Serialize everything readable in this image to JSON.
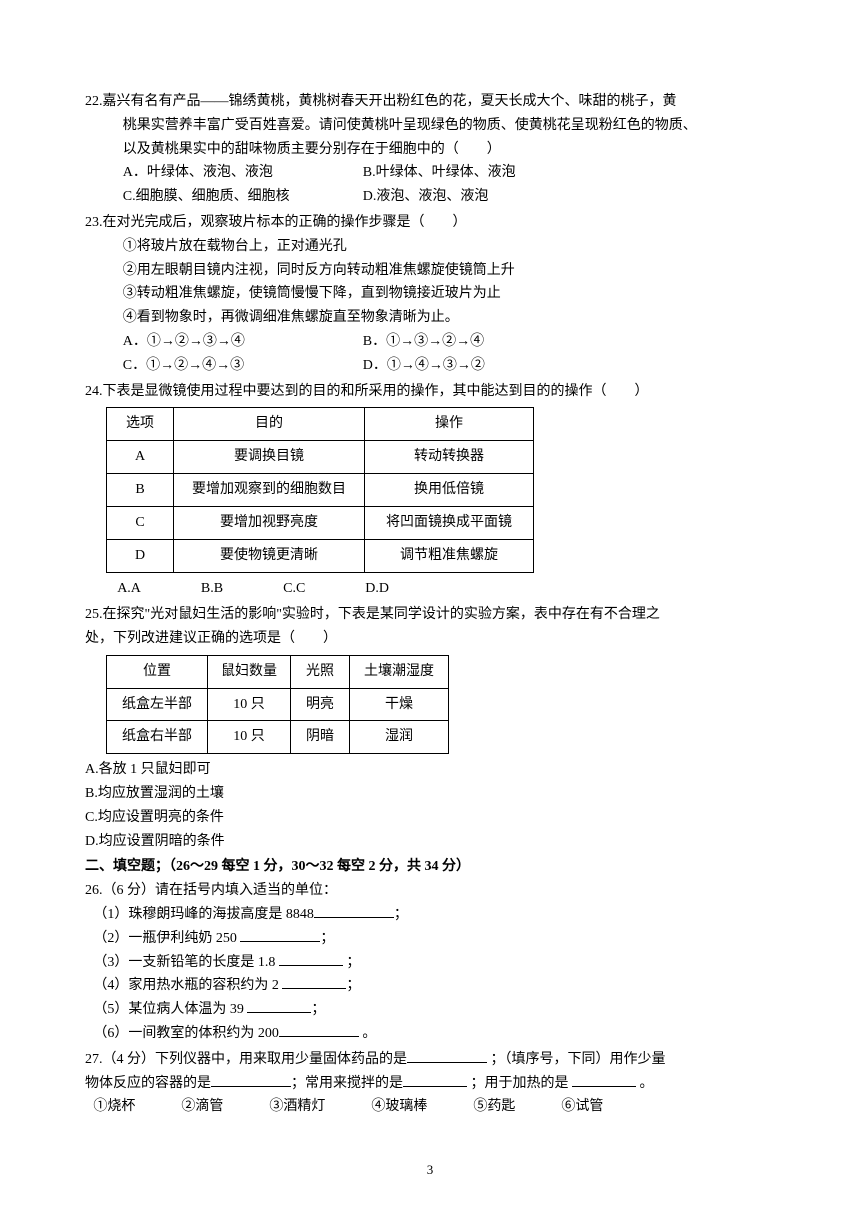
{
  "q22": {
    "number": "22.",
    "line1": "嘉兴有名有产品——锦绣黄桃，黄桃树春天开出粉红色的花，夏天长成大个、味甜的桃子，黄",
    "line2": "桃果实营养丰富广受百姓喜爱。请问使黄桃叶呈现绿色的物质、使黄桃花呈现粉红色的物质、",
    "line3": "以及黄桃果实中的甜味物质主要分别存在于细胞中的（　　）",
    "optA": "A．叶绿体、液泡、液泡",
    "optB": "B.叶绿体、叶绿体、液泡",
    "optC": "C.细胞膜、细胞质、细胞核",
    "optD": "D.液泡、液泡、液泡"
  },
  "q23": {
    "number": "23.",
    "stem": "在对光完成后，观察玻片标本的正确的操作步骤是（　　）",
    "s1": "①将玻片放在载物台上，正对通光孔",
    "s2": "②用左眼朝目镜内注视，同时反方向转动粗准焦螺旋使镜筒上升",
    "s3": "③转动粗准焦螺旋，使镜筒慢慢下降，直到物镜接近玻片为止",
    "s4": "④看到物象时，再微调细准焦螺旋直至物象清晰为止。",
    "optA": "A．①→②→③→④",
    "optB": "B．①→③→②→④",
    "optC": "C．①→②→④→③",
    "optD": "D．①→④→③→②"
  },
  "q24": {
    "number": "24.",
    "stem": "下表是显微镜使用过程中要达到的目的和所采用的操作，其中能达到目的的操作（　　）",
    "table": {
      "header": [
        "选项",
        "目的",
        "操作"
      ],
      "rows": [
        [
          "A",
          "要调换目镜",
          "转动转换器"
        ],
        [
          "B",
          "要增加观察到的细胞数目",
          "换用低倍镜"
        ],
        [
          "C",
          "要增加视野亮度",
          "将凹面镜换成平面镜"
        ],
        [
          "D",
          "要使物镜更清晰",
          "调节粗准焦螺旋"
        ]
      ]
    },
    "opts": [
      "A.A",
      "B.B",
      "C.C",
      "D.D"
    ]
  },
  "q25": {
    "number": "25.",
    "stem1": "在探究\"光对鼠妇生活的影响\"实验时，下表是某同学设计的实验方案，表中存在有不合理之",
    "stem2": "处，下列改进建议正确的选项是（　　）",
    "table": {
      "header": [
        "位置",
        "鼠妇数量",
        "光照",
        "土壤潮湿度"
      ],
      "rows": [
        [
          "纸盒左半部",
          "10 只",
          "明亮",
          "干燥"
        ],
        [
          "纸盒右半部",
          "10 只",
          "阴暗",
          "湿润"
        ]
      ]
    },
    "optA": "A.各放 1 只鼠妇即可",
    "optB": "B.均应放置湿润的土壤",
    "optC": "C.均应设置明亮的条件",
    "optD": "D.均应设置阴暗的条件"
  },
  "section2": "二、填空题；（26～29 每空 1 分，30～32 每空 2 分，共 34 分）",
  "q26": {
    "number": "26.",
    "stem": "（6 分）请在括号内填入适当的单位：",
    "i1a": "（1）珠穆朗玛峰的海拔高度是 8848",
    "i1b": "；",
    "i2a": "（2）一瓶伊利纯奶 250 ",
    "i2b": "；",
    "i3a": "（3）一支新铅笔的长度是 1.8 ",
    "i3b": " ；",
    "i4a": "（4）家用热水瓶的容积约为 2 ",
    "i4b": "；",
    "i5a": "（5）某位病人体温为 39 ",
    "i5b": "；",
    "i6a": "（6）一间教室的体积约为 200",
    "i6b": " 。"
  },
  "q27": {
    "number": "27.",
    "p1a": "（4 分）下列仪器中，用来取用少量固体药品的是",
    "p1b": " ；（填序号，下同）用作少量",
    "p2a": "物体反应的容器的是",
    "p2b": "；常用来搅拌的是",
    "p2c": " ；用于加热的是 ",
    "p2d": " 。",
    "instruments": [
      "①烧杯",
      "②滴管",
      "③酒精灯",
      "④玻璃棒",
      "⑤药匙",
      "⑥试管"
    ]
  },
  "pageNumber": "3"
}
